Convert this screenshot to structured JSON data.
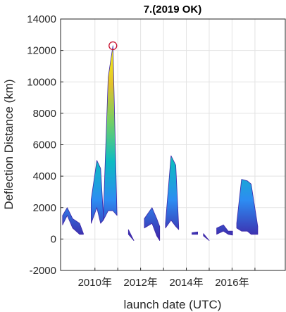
{
  "chart_data": {
    "type": "area",
    "title": "7.(2019 OK)",
    "xlabel": "launch date (UTC)",
    "ylabel": "Deflection Distance (km)",
    "xlim": [
      "2008-07-01",
      "2018-05-01"
    ],
    "ylim": [
      -2000,
      14000
    ],
    "yticks": [
      -2000,
      0,
      2000,
      4000,
      6000,
      8000,
      10000,
      12000,
      14000
    ],
    "ytick_labels": [
      "-2000",
      "0",
      "2000",
      "4000",
      "6000",
      "8000",
      "10000",
      "12000",
      "14000"
    ],
    "xticks": [
      "2010-01-01",
      "2011-01-01",
      "2012-01-01",
      "2013-01-01",
      "2014-01-01",
      "2015-01-01",
      "2016-01-01",
      "2017-01-01"
    ],
    "xtick_labels": [
      "2010年",
      "",
      "2012年",
      "",
      "2014年",
      "",
      "2016年",
      ""
    ],
    "grid": true,
    "colormap": [
      "#3e26a8",
      "#2d8cf2",
      "#0dbbc2",
      "#6fcf68",
      "#e3c12b",
      "#f9fb0e"
    ],
    "max_marker": {
      "x": "2010-10-15",
      "y": 12300,
      "color": "#c8102e"
    },
    "bands": [
      {
        "x": [
          "2008-08-01",
          "2008-10-15",
          "2009-01-10",
          "2009-05-01",
          "2009-07-01"
        ],
        "upper": [
          1500,
          2000,
          1300,
          1000,
          350
        ],
        "lower": [
          900,
          1500,
          700,
          300,
          300
        ]
      },
      {
        "x": [
          "2009-11-01",
          "2010-02-01",
          "2010-04-01",
          "2010-05-15"
        ],
        "upper": [
          2500,
          5000,
          4500,
          1500
        ],
        "lower": [
          1000,
          2000,
          1000,
          1200
        ]
      },
      {
        "x": [
          "2010-05-15",
          "2010-08-01",
          "2010-10-15",
          "2010-12-20"
        ],
        "upper": [
          1500,
          10300,
          12300,
          1500
        ],
        "lower": [
          1200,
          1800,
          1800,
          1500
        ]
      },
      {
        "x": [
          "2011-06-20",
          "2011-09-15"
        ],
        "upper": [
          600,
          -100
        ],
        "lower": [
          300,
          -100
        ]
      },
      {
        "x": [
          "2012-03-01",
          "2012-07-01",
          "2012-09-15",
          "2012-11-01"
        ],
        "upper": [
          1300,
          2000,
          1300,
          800
        ],
        "lower": [
          700,
          1000,
          200,
          -100
        ]
      },
      {
        "x": [
          "2013-02-01",
          "2013-05-01",
          "2013-07-15",
          "2013-09-01"
        ],
        "upper": [
          1000,
          5300,
          4700,
          800
        ],
        "lower": [
          700,
          1200,
          800,
          600
        ]
      },
      {
        "x": [
          "2014-04-01",
          "2014-07-01"
        ],
        "upper": [
          400,
          450
        ],
        "lower": [
          300,
          300
        ]
      },
      {
        "x": [
          "2014-10-01",
          "2015-01-01"
        ],
        "upper": [
          350,
          -100
        ],
        "lower": [
          200,
          -100
        ]
      },
      {
        "x": [
          "2015-05-01",
          "2015-08-15",
          "2015-11-01",
          "2016-01-10"
        ],
        "upper": [
          700,
          900,
          500,
          500
        ],
        "lower": [
          300,
          500,
          300,
          250
        ]
      },
      {
        "x": [
          "2016-03-15",
          "2016-06-01",
          "2016-09-01",
          "2016-11-01",
          "2017-02-15"
        ],
        "upper": [
          1000,
          3800,
          3700,
          3500,
          800
        ],
        "lower": [
          700,
          500,
          500,
          300,
          300
        ]
      }
    ]
  }
}
